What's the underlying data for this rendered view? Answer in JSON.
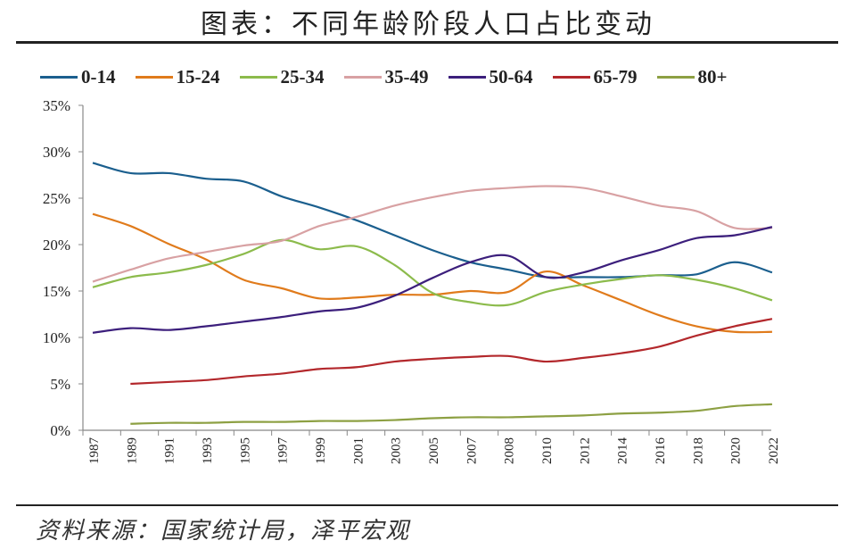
{
  "chart_data": {
    "type": "line",
    "title": "图表：不同年龄阶段人口占比变动",
    "source": "资料来源：国家统计局，泽平宏观",
    "xlabel": "",
    "ylabel": "",
    "categories": [
      "1987",
      "1989",
      "1991",
      "1993",
      "1995",
      "1997",
      "1999",
      "2001",
      "2003",
      "2005",
      "2007",
      "2008",
      "2010",
      "2012",
      "2014",
      "2016",
      "2018",
      "2020",
      "2022"
    ],
    "y_ticks": [
      "0%",
      "5%",
      "10%",
      "15%",
      "20%",
      "25%",
      "30%",
      "35%"
    ],
    "ylim": [
      0,
      35
    ],
    "y_unit": "%",
    "grid": false,
    "legend_position": "top",
    "series": [
      {
        "name": "0-14",
        "color": "#1b5f8e",
        "values": [
          28.8,
          27.7,
          27.7,
          27.1,
          26.8,
          25.2,
          24.0,
          22.6,
          21.0,
          19.4,
          18.1,
          17.3,
          16.5,
          16.5,
          16.5,
          16.7,
          16.8,
          18.1,
          17.0
        ]
      },
      {
        "name": "15-24",
        "color": "#e07b1c",
        "values": [
          23.3,
          22.0,
          20.1,
          18.4,
          16.2,
          15.3,
          14.2,
          14.3,
          14.6,
          14.6,
          15.0,
          14.9,
          17.1,
          15.6,
          14.0,
          12.4,
          11.2,
          10.6,
          10.6
        ]
      },
      {
        "name": "25-34",
        "color": "#8cbb4c",
        "values": [
          15.4,
          16.5,
          17.0,
          17.8,
          19.0,
          20.5,
          19.5,
          19.8,
          17.8,
          14.8,
          13.8,
          13.5,
          14.9,
          15.7,
          16.3,
          16.7,
          16.2,
          15.3,
          14.0
        ]
      },
      {
        "name": "35-49",
        "color": "#d8a1a3",
        "values": [
          16.0,
          17.3,
          18.5,
          19.2,
          19.9,
          20.4,
          22.0,
          23.0,
          24.2,
          25.1,
          25.8,
          26.1,
          26.3,
          26.1,
          25.2,
          24.2,
          23.6,
          21.8,
          21.8
        ]
      },
      {
        "name": "50-64",
        "color": "#3c1f7c",
        "values": [
          10.5,
          11.0,
          10.8,
          11.2,
          11.7,
          12.2,
          12.8,
          13.2,
          14.5,
          16.4,
          18.1,
          18.8,
          16.5,
          17.0,
          18.3,
          19.4,
          20.7,
          21.0,
          21.9
        ]
      },
      {
        "name": "65-79",
        "color": "#b3282c",
        "values": [
          null,
          5.0,
          5.2,
          5.4,
          5.8,
          6.1,
          6.6,
          6.8,
          7.4,
          7.7,
          7.9,
          8.0,
          7.4,
          7.8,
          8.3,
          9.0,
          10.2,
          11.2,
          12.0
        ]
      },
      {
        "name": "80+",
        "color": "#8da043",
        "values": [
          null,
          0.7,
          0.8,
          0.8,
          0.9,
          0.9,
          1.0,
          1.0,
          1.1,
          1.3,
          1.4,
          1.4,
          1.5,
          1.6,
          1.8,
          1.9,
          2.1,
          2.6,
          2.8
        ]
      }
    ]
  }
}
